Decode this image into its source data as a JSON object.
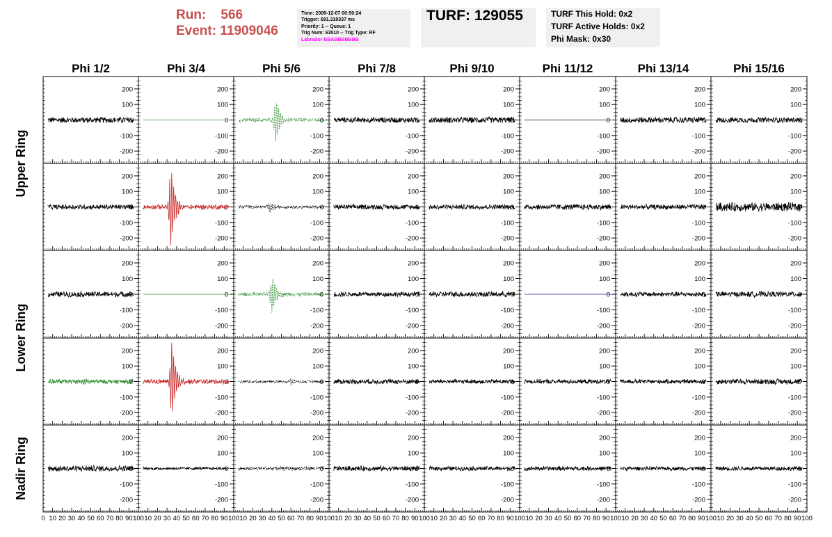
{
  "header": {
    "run_label": "Run:",
    "run_value": "566",
    "event_label": "Event:",
    "event_value": "11909046",
    "info": {
      "time": "Time: 2008-12-07 00:50:24",
      "trigger": "Trigger: 691.310337 ms",
      "priority": "Priority: 1 -- Queue: 1",
      "trig_num": "Trig Num: 63510 -- Trig Type: RF",
      "labrador": "Labrador BBABBBBBBB"
    },
    "turf": "TURF: 129055",
    "turf_this_hold": "TURF This Hold: 0x2",
    "turf_active_holds": "TURF Active Holds: 0x2",
    "phi_mask": "Phi Mask: 0x30"
  },
  "colors": {
    "header_red": "#c7504e",
    "labrador_magenta": "#ff00ff",
    "trace_black": "#000000",
    "trace_green": "#2e8b2e",
    "trace_red": "#c82828",
    "trace_blue": "#2020b0"
  },
  "chart_data": {
    "type": "line",
    "title": "",
    "column_labels": [
      "Phi 1/2",
      "Phi 3/4",
      "Phi 5/6",
      "Phi 7/8",
      "Phi 9/10",
      "Phi 11/12",
      "Phi 13/14",
      "Phi 15/16"
    ],
    "ring_labels": [
      "Upper Ring",
      "Lower Ring",
      "Nadir Ring"
    ],
    "rows_per_ring": [
      2,
      2,
      1
    ],
    "xlim": [
      0,
      100
    ],
    "ylim": [
      -280,
      280
    ],
    "x_ticks": [
      0,
      10,
      20,
      30,
      40,
      50,
      60,
      70,
      80,
      90,
      100
    ],
    "x_tick_labels": [
      "0",
      "10",
      "20",
      "30",
      "40",
      "50",
      "60",
      "70",
      "80",
      "90",
      "100"
    ],
    "y_ticks": [
      200,
      100,
      0,
      -100,
      -200
    ],
    "y_tick_labels": [
      "200",
      "100",
      "0",
      "-100",
      "-200"
    ],
    "waveforms": [
      [
        {
          "color": "black",
          "noise": 22,
          "pulse_amp": 0,
          "pulse_center": 0,
          "dashed": false
        },
        {
          "color": "green",
          "noise": 0,
          "pulse_amp": 0,
          "pulse_center": 0,
          "dashed": false
        },
        {
          "color": "green",
          "noise": 14,
          "pulse_amp": 160,
          "pulse_center": 44,
          "dashed": true
        },
        {
          "color": "black",
          "noise": 20,
          "pulse_amp": 0,
          "pulse_center": 0,
          "dashed": false
        },
        {
          "color": "black",
          "noise": 22,
          "pulse_amp": 0,
          "pulse_center": 0,
          "dashed": false
        },
        {
          "color": "black",
          "noise": 0,
          "pulse_amp": 0,
          "pulse_center": 0,
          "dashed": false
        },
        {
          "color": "black",
          "noise": 22,
          "pulse_amp": 0,
          "pulse_center": 0,
          "dashed": false
        },
        {
          "color": "black",
          "noise": 20,
          "pulse_amp": 0,
          "pulse_center": 0,
          "dashed": false
        }
      ],
      [
        {
          "color": "black",
          "noise": 18,
          "pulse_amp": 0,
          "pulse_center": 0,
          "dashed": false
        },
        {
          "color": "red",
          "noise": 18,
          "pulse_amp": 270,
          "pulse_center": 34,
          "dashed": false
        },
        {
          "color": "black",
          "noise": 12,
          "pulse_amp": 30,
          "pulse_center": 38,
          "dashed": true
        },
        {
          "color": "black",
          "noise": 18,
          "pulse_amp": 0,
          "pulse_center": 0,
          "dashed": false
        },
        {
          "color": "black",
          "noise": 18,
          "pulse_amp": 0,
          "pulse_center": 0,
          "dashed": false
        },
        {
          "color": "black",
          "noise": 20,
          "pulse_amp": 0,
          "pulse_center": 0,
          "dashed": false
        },
        {
          "color": "black",
          "noise": 18,
          "pulse_amp": 0,
          "pulse_center": 0,
          "dashed": false
        },
        {
          "color": "black",
          "noise": 32,
          "pulse_amp": 0,
          "pulse_center": 0,
          "dashed": false
        }
      ],
      [
        {
          "color": "black",
          "noise": 20,
          "pulse_amp": 0,
          "pulse_center": 0,
          "dashed": false
        },
        {
          "color": "green",
          "noise": 0,
          "pulse_amp": 0,
          "pulse_center": 0,
          "dashed": false
        },
        {
          "color": "green",
          "noise": 14,
          "pulse_amp": 130,
          "pulse_center": 40,
          "dashed": true
        },
        {
          "color": "black",
          "noise": 18,
          "pulse_amp": 0,
          "pulse_center": 0,
          "dashed": false
        },
        {
          "color": "black",
          "noise": 20,
          "pulse_amp": 0,
          "pulse_center": 0,
          "dashed": false
        },
        {
          "color": "blue",
          "noise": 0,
          "pulse_amp": 0,
          "pulse_center": 0,
          "dashed": false
        },
        {
          "color": "black",
          "noise": 18,
          "pulse_amp": 0,
          "pulse_center": 0,
          "dashed": false
        },
        {
          "color": "black",
          "noise": 20,
          "pulse_amp": 0,
          "pulse_center": 0,
          "dashed": false
        }
      ],
      [
        {
          "color": "green",
          "noise": 16,
          "pulse_amp": 30,
          "pulse_center": 42,
          "dashed": false
        },
        {
          "color": "red",
          "noise": 18,
          "pulse_amp": 260,
          "pulse_center": 35,
          "dashed": false
        },
        {
          "color": "black",
          "noise": 10,
          "pulse_amp": 20,
          "pulse_center": 60,
          "dashed": true
        },
        {
          "color": "black",
          "noise": 18,
          "pulse_amp": 0,
          "pulse_center": 0,
          "dashed": false
        },
        {
          "color": "black",
          "noise": 16,
          "pulse_amp": 0,
          "pulse_center": 0,
          "dashed": false
        },
        {
          "color": "black",
          "noise": 16,
          "pulse_amp": 0,
          "pulse_center": 0,
          "dashed": false
        },
        {
          "color": "black",
          "noise": 16,
          "pulse_amp": 0,
          "pulse_center": 0,
          "dashed": false
        },
        {
          "color": "black",
          "noise": 20,
          "pulse_amp": 0,
          "pulse_center": 0,
          "dashed": false
        }
      ],
      [
        {
          "color": "black",
          "noise": 22,
          "pulse_amp": 0,
          "pulse_center": 0,
          "dashed": false
        },
        {
          "color": "black",
          "noise": 10,
          "pulse_amp": 0,
          "pulse_center": 0,
          "dashed": false
        },
        {
          "color": "black",
          "noise": 14,
          "pulse_amp": 0,
          "pulse_center": 0,
          "dashed": true
        },
        {
          "color": "black",
          "noise": 18,
          "pulse_amp": 0,
          "pulse_center": 0,
          "dashed": false
        },
        {
          "color": "black",
          "noise": 16,
          "pulse_amp": 0,
          "pulse_center": 0,
          "dashed": false
        },
        {
          "color": "black",
          "noise": 16,
          "pulse_amp": 0,
          "pulse_center": 0,
          "dashed": false
        },
        {
          "color": "black",
          "noise": 14,
          "pulse_amp": 0,
          "pulse_center": 0,
          "dashed": false
        },
        {
          "color": "black",
          "noise": 16,
          "pulse_amp": 0,
          "pulse_center": 0,
          "dashed": false
        }
      ]
    ]
  }
}
